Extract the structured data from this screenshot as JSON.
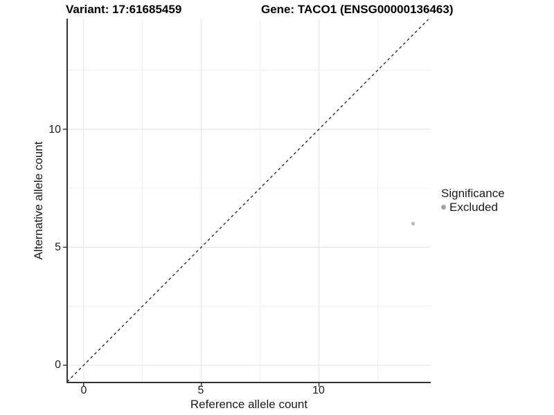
{
  "chart_data": {
    "type": "scatter",
    "title_left": "Variant: 17:61685459",
    "title_right": "Gene: TACO1 (ENSG00000136463)",
    "xlabel": "Reference allele count",
    "ylabel": "Alternative allele count",
    "xlim": [
      -0.7,
      14.75
    ],
    "ylim": [
      -0.73,
      14.65
    ],
    "x_ticks": [
      0,
      5,
      10
    ],
    "y_ticks": [
      0,
      5,
      10
    ],
    "x_tick_labels": [
      "0",
      "5",
      "10"
    ],
    "y_tick_labels": [
      "0",
      "5",
      "10"
    ],
    "minor_ticks": [
      2.5,
      7.5,
      12.5
    ],
    "grid": true,
    "legend_position": "right",
    "reference_line": {
      "type": "identity y=x",
      "style": "dashed",
      "color": "#1c1c1c"
    },
    "series": [
      {
        "name": "Excluded",
        "color": "#b9b9b9",
        "points": [
          {
            "x": 14,
            "y": 6
          }
        ]
      }
    ],
    "legend": {
      "title": "Significance",
      "entries": [
        {
          "label": "Excluded",
          "color": "#a3a3a3"
        }
      ]
    }
  },
  "colors": {
    "background": "#ffffff",
    "grid_major": "#e7e7e7",
    "grid_minor": "#efefef",
    "axis": "#333333",
    "text": "#1a1a1a"
  }
}
